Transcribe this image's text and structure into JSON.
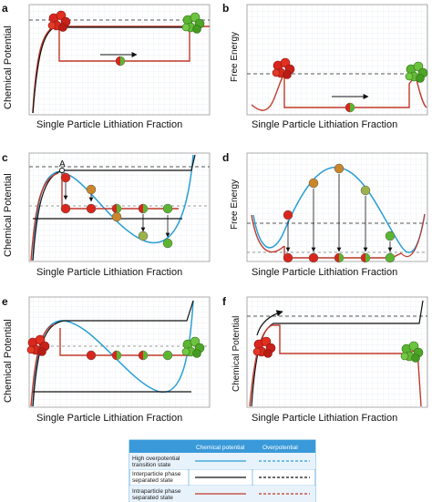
{
  "panels": {
    "a": {
      "label": "a",
      "xlabel": "Single Particle Lithiation Fraction",
      "ylabel": "Chemical Potential"
    },
    "b": {
      "label": "b",
      "xlabel": "Single Particle Lithiation Fraction",
      "ylabel": "Free Energy"
    },
    "c": {
      "label": "c",
      "xlabel": "Single Particle Lithiation Fraction",
      "ylabel": "Chemical Potential",
      "point": "A"
    },
    "d": {
      "label": "d",
      "xlabel": "Single Particle Lithiation Fraction",
      "ylabel": "Free Energy"
    },
    "e": {
      "label": "e",
      "xlabel": "Single Particle Lithiation Fraction",
      "ylabel": "Chemical Potential"
    },
    "f": {
      "label": "f",
      "xlabel": "Single Particle Lithiation Fraction",
      "ylabel": "Chemical Potential"
    }
  },
  "legend": {
    "headers": [
      "",
      "Chemical potential",
      "Overpotential"
    ],
    "rows": [
      {
        "label_line1": "High overpotential",
        "label_line2": "transition state",
        "color": "#2a9fd6"
      },
      {
        "label_line1": "Interparticle phase",
        "label_line2": "separated state",
        "color": "#111111"
      },
      {
        "label_line1": "Intraparticle phase",
        "label_line2": "separated state",
        "color": "#c0392b"
      }
    ],
    "header_color": "#3a9ad9"
  },
  "colors": {
    "red": "#d9261c",
    "green": "#5cb531",
    "orange": "#c9862a",
    "blue": "#2a9fd6",
    "black": "#111111",
    "redline": "#c0392b"
  }
}
